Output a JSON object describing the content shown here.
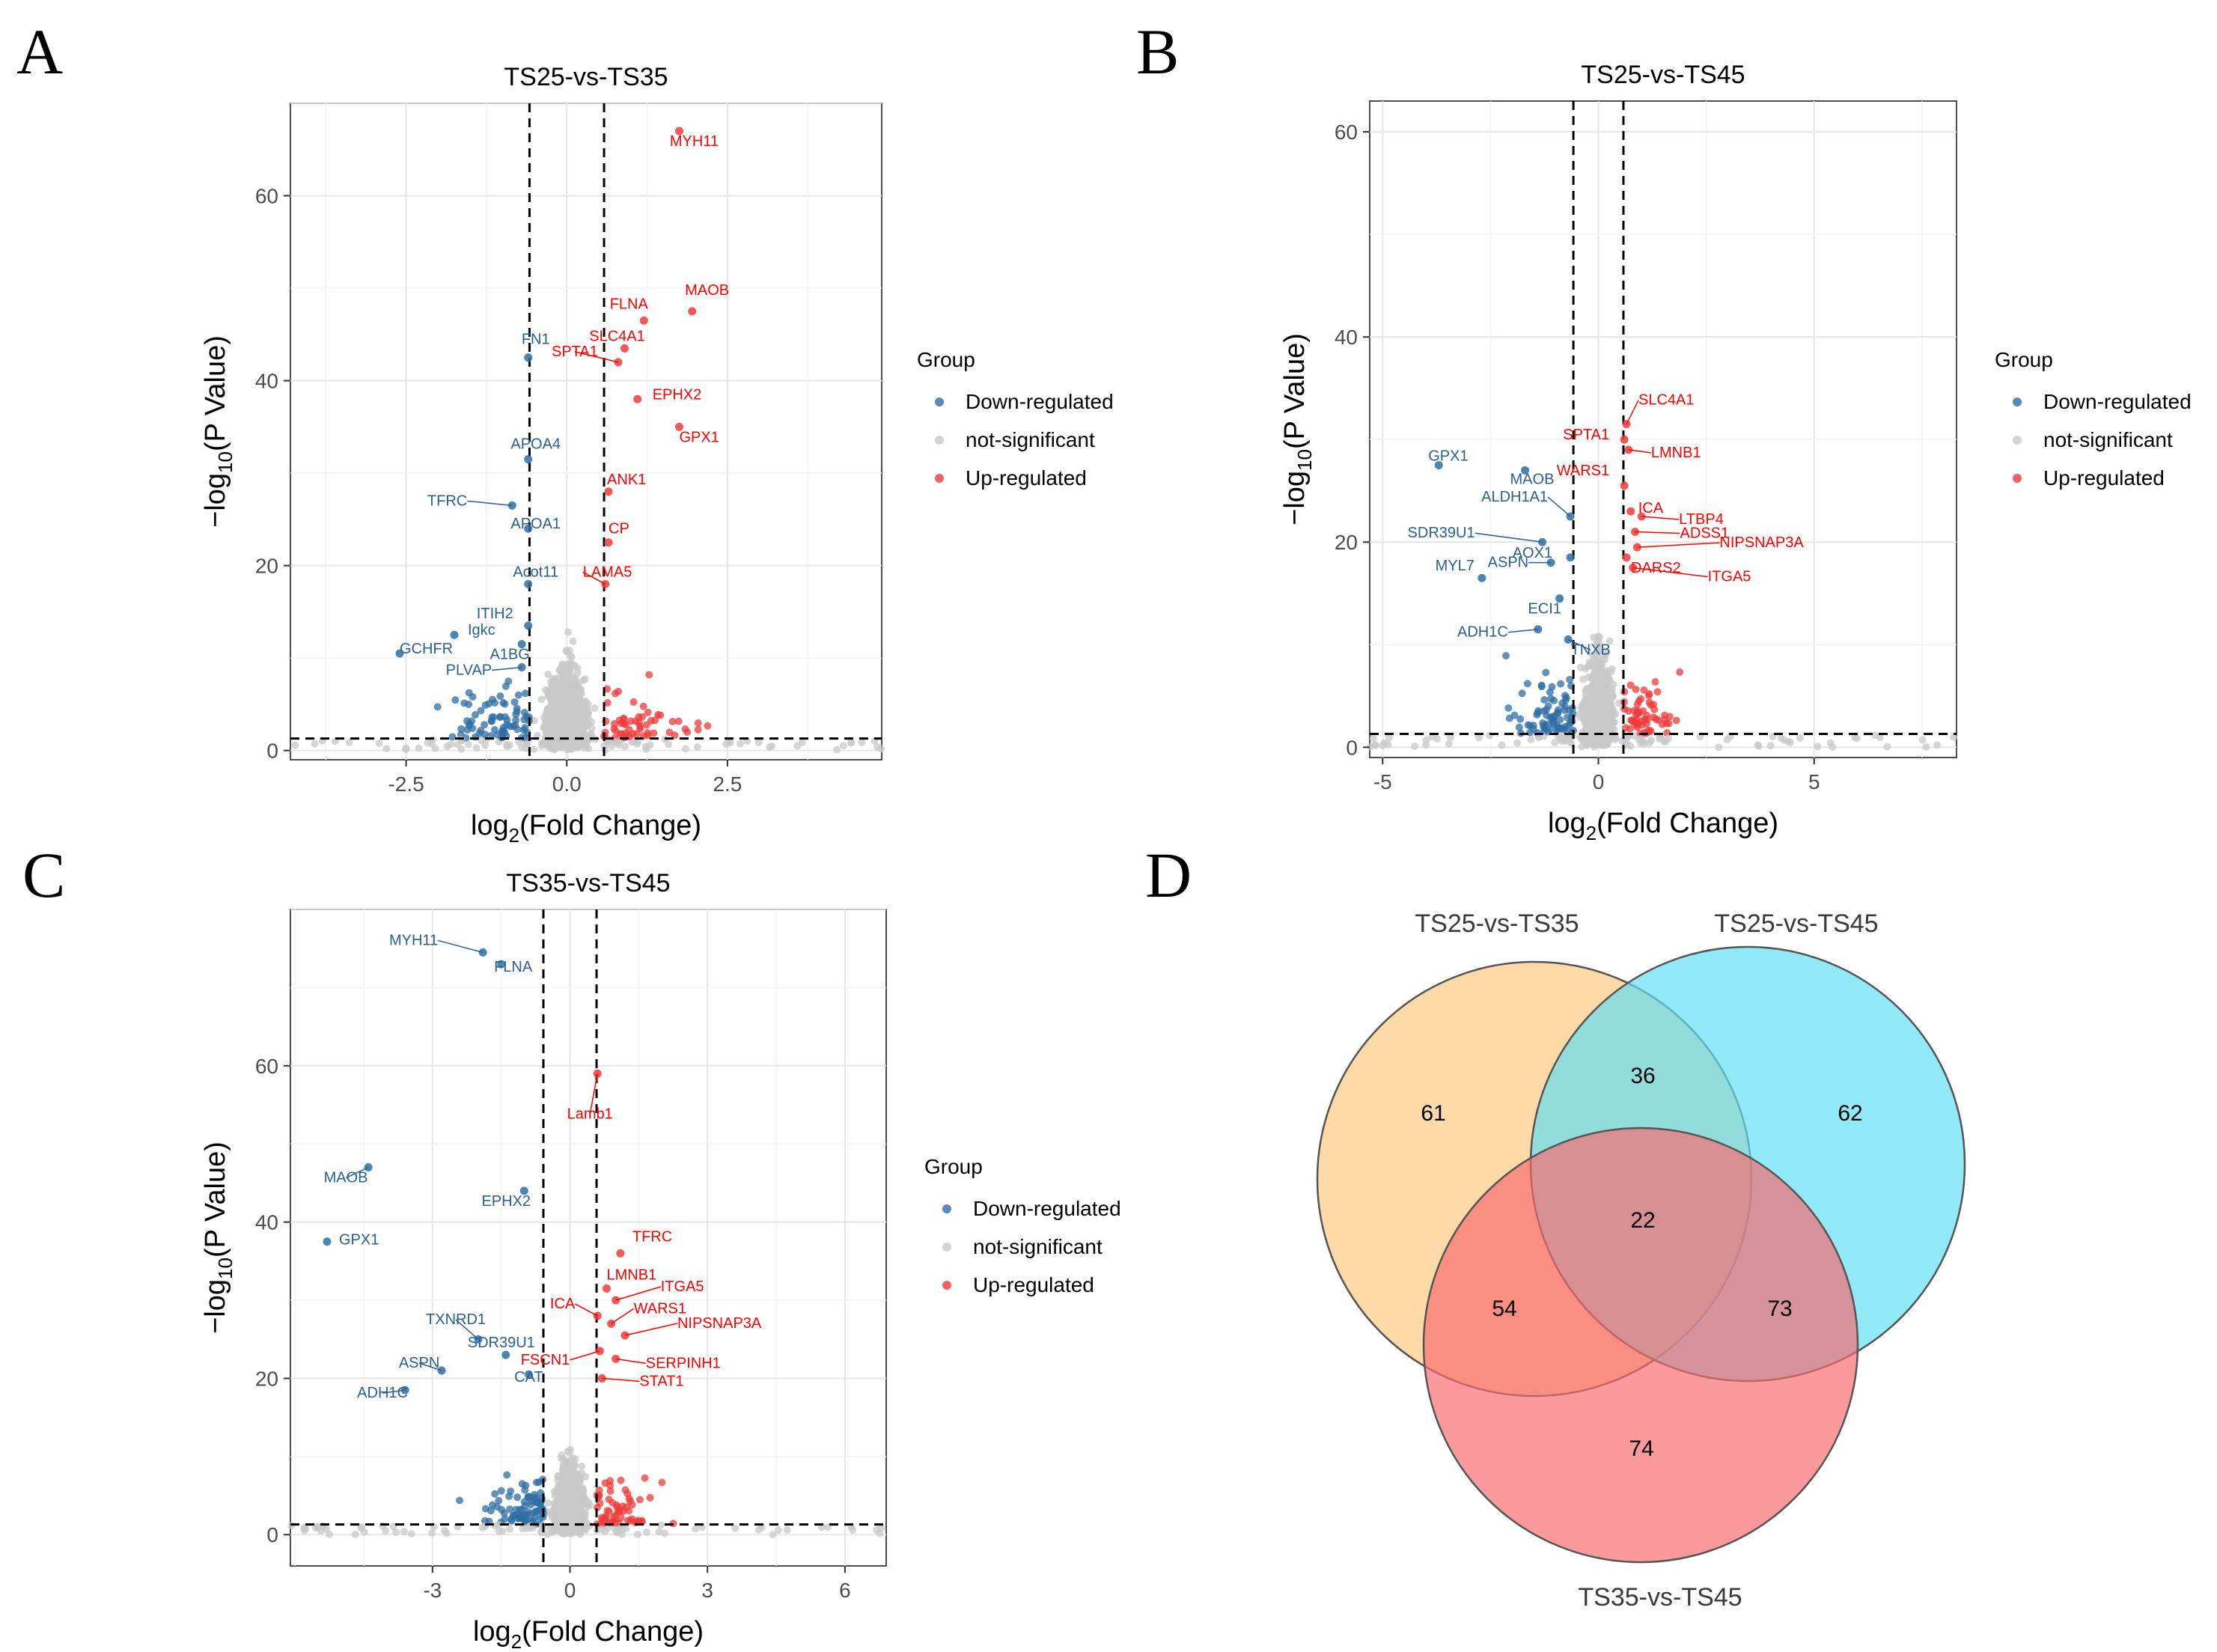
{
  "panels": {
    "A": "A",
    "B": "B",
    "C": "C",
    "D": "D"
  },
  "legend": {
    "title": "Group",
    "items": [
      {
        "label": "Down-regulated",
        "color": "#2f6ea4"
      },
      {
        "label": "not-significant",
        "color": "#c8c8c8"
      },
      {
        "label": "Up-regulated",
        "color": "#ee3b3b"
      }
    ]
  },
  "chart_data": [
    {
      "type": "scatter",
      "title": "TS25-vs-TS35",
      "xlabel": "log2(Fold Change)",
      "ylabel": "−log10(P Value)",
      "xlim": [
        -4.3,
        4.9
      ],
      "ylim": [
        -1,
        70
      ],
      "xticks": [
        -2.5,
        0,
        2.5
      ],
      "yticks": [
        0,
        20,
        40,
        60
      ],
      "fc_threshold": [
        -0.58,
        0.58
      ],
      "p_threshold": 1.3,
      "labeled": [
        {
          "gene": "MYH11",
          "x": 1.75,
          "y": 67,
          "group": "up"
        },
        {
          "gene": "MAOB",
          "x": 1.95,
          "y": 47.5,
          "group": "up"
        },
        {
          "gene": "FLNA",
          "x": 1.2,
          "y": 46.5,
          "group": "up"
        },
        {
          "gene": "SLC4A1",
          "x": 0.9,
          "y": 43.5,
          "group": "up"
        },
        {
          "gene": "SPTA1",
          "x": 0.8,
          "y": 42,
          "group": "up"
        },
        {
          "gene": "EPHX2",
          "x": 1.1,
          "y": 38,
          "group": "up"
        },
        {
          "gene": "GPX1",
          "x": 1.75,
          "y": 35,
          "group": "up"
        },
        {
          "gene": "ANK1",
          "x": 0.65,
          "y": 28,
          "group": "up"
        },
        {
          "gene": "CP",
          "x": 0.65,
          "y": 22.5,
          "group": "up"
        },
        {
          "gene": "LAMA5",
          "x": 0.6,
          "y": 18,
          "group": "up"
        },
        {
          "gene": "FN1",
          "x": -0.6,
          "y": 42.5,
          "group": "down"
        },
        {
          "gene": "APOA4",
          "x": -0.6,
          "y": 31.5,
          "group": "down"
        },
        {
          "gene": "TFRC",
          "x": -0.85,
          "y": 26.5,
          "group": "down"
        },
        {
          "gene": "APOA1",
          "x": -0.6,
          "y": 24,
          "group": "down"
        },
        {
          "gene": "Acot11",
          "x": -0.6,
          "y": 18,
          "group": "down"
        },
        {
          "gene": "ITIH2",
          "x": -0.6,
          "y": 13.5,
          "group": "down"
        },
        {
          "gene": "A1BG",
          "x": -0.7,
          "y": 11.5,
          "group": "down"
        },
        {
          "gene": "Igkc",
          "x": -1.75,
          "y": 12.5,
          "group": "down"
        },
        {
          "gene": "GCHFR",
          "x": -2.6,
          "y": 10.5,
          "group": "down"
        },
        {
          "gene": "PLVAP",
          "x": -0.7,
          "y": 9,
          "group": "down"
        }
      ]
    },
    {
      "type": "scatter",
      "title": "TS25-vs-TS45",
      "xlabel": "log2(Fold Change)",
      "ylabel": "−log10(P Value)",
      "xlim": [
        -5.3,
        8.3
      ],
      "ylim": [
        -1,
        63
      ],
      "xticks": [
        -5,
        0,
        5
      ],
      "yticks": [
        0,
        20,
        40,
        60
      ],
      "fc_threshold": [
        -0.58,
        0.58
      ],
      "p_threshold": 1.3,
      "labeled": [
        {
          "gene": "SLC4A1",
          "x": 0.65,
          "y": 31.5,
          "group": "up"
        },
        {
          "gene": "SPTA1",
          "x": 0.6,
          "y": 30,
          "group": "up"
        },
        {
          "gene": "LMNB1",
          "x": 0.7,
          "y": 29,
          "group": "up"
        },
        {
          "gene": "WARS1",
          "x": 0.6,
          "y": 25.5,
          "group": "up"
        },
        {
          "gene": "ICA",
          "x": 0.75,
          "y": 23,
          "group": "up"
        },
        {
          "gene": "LTBP4",
          "x": 1.0,
          "y": 22.5,
          "group": "up"
        },
        {
          "gene": "ADSS1",
          "x": 0.85,
          "y": 21,
          "group": "up"
        },
        {
          "gene": "NIPSNAP3A",
          "x": 0.9,
          "y": 19.5,
          "group": "up"
        },
        {
          "gene": "DARS2",
          "x": 0.65,
          "y": 18.5,
          "group": "up"
        },
        {
          "gene": "ITGA5",
          "x": 0.8,
          "y": 17.5,
          "group": "up"
        },
        {
          "gene": "GPX1",
          "x": -3.7,
          "y": 27.5,
          "group": "down"
        },
        {
          "gene": "MAOB",
          "x": -1.7,
          "y": 27,
          "group": "down"
        },
        {
          "gene": "ALDH1A1",
          "x": -0.65,
          "y": 22.5,
          "group": "down"
        },
        {
          "gene": "SDR39U1",
          "x": -1.3,
          "y": 20,
          "group": "down"
        },
        {
          "gene": "AOX1",
          "x": -0.65,
          "y": 18.5,
          "group": "down"
        },
        {
          "gene": "ASPN",
          "x": -1.1,
          "y": 18,
          "group": "down"
        },
        {
          "gene": "MYL7",
          "x": -2.7,
          "y": 16.5,
          "group": "down"
        },
        {
          "gene": "ECI1",
          "x": -0.9,
          "y": 14.5,
          "group": "down"
        },
        {
          "gene": "ADH1C",
          "x": -1.4,
          "y": 11.5,
          "group": "down"
        },
        {
          "gene": "TNXB",
          "x": -0.7,
          "y": 10.5,
          "group": "down"
        }
      ]
    },
    {
      "type": "scatter",
      "title": "TS35-vs-TS45",
      "xlabel": "log2(Fold Change)",
      "ylabel": "−log10(P Value)",
      "xlim": [
        -6.1,
        6.9
      ],
      "ylim": [
        -4,
        80
      ],
      "xticks": [
        -3,
        0,
        3,
        6
      ],
      "yticks": [
        0,
        20,
        40,
        60
      ],
      "fc_threshold": [
        -0.58,
        0.58
      ],
      "p_threshold": 1.3,
      "labeled": [
        {
          "gene": "MYH11",
          "x": -1.9,
          "y": 74.5,
          "group": "down"
        },
        {
          "gene": "FLNA",
          "x": -1.5,
          "y": 73,
          "group": "down"
        },
        {
          "gene": "MAOB",
          "x": -4.4,
          "y": 47,
          "group": "down"
        },
        {
          "gene": "EPHX2",
          "x": -1.0,
          "y": 44,
          "group": "down"
        },
        {
          "gene": "GPX1",
          "x": -5.3,
          "y": 37.5,
          "group": "down"
        },
        {
          "gene": "TXNRD1",
          "x": -2.0,
          "y": 25,
          "group": "down"
        },
        {
          "gene": "SDR39U1",
          "x": -1.4,
          "y": 23,
          "group": "down"
        },
        {
          "gene": "ASPN",
          "x": -2.8,
          "y": 21,
          "group": "down"
        },
        {
          "gene": "CAT",
          "x": -0.9,
          "y": 20.5,
          "group": "down"
        },
        {
          "gene": "ADH1C",
          "x": -3.6,
          "y": 18.5,
          "group": "down"
        },
        {
          "gene": "Lamb1",
          "x": 0.6,
          "y": 59,
          "group": "up"
        },
        {
          "gene": "TFRC",
          "x": 1.1,
          "y": 36,
          "group": "up"
        },
        {
          "gene": "LMNB1",
          "x": 0.8,
          "y": 31.5,
          "group": "up"
        },
        {
          "gene": "ITGA5",
          "x": 1.0,
          "y": 30,
          "group": "up"
        },
        {
          "gene": "ICA",
          "x": 0.6,
          "y": 28,
          "group": "up"
        },
        {
          "gene": "WARS1",
          "x": 0.9,
          "y": 27,
          "group": "up"
        },
        {
          "gene": "NIPSNAP3A",
          "x": 1.2,
          "y": 25.5,
          "group": "up"
        },
        {
          "gene": "FSCN1",
          "x": 0.65,
          "y": 23.5,
          "group": "up"
        },
        {
          "gene": "SERPINH1",
          "x": 1.0,
          "y": 22.5,
          "group": "up"
        },
        {
          "gene": "STAT1",
          "x": 0.7,
          "y": 20,
          "group": "up"
        }
      ]
    },
    {
      "type": "venn",
      "sets": [
        "TS25-vs-TS35",
        "TS25-vs-TS45",
        "TS35-vs-TS45"
      ],
      "regions": {
        "TS25-vs-TS35 only": "61",
        "TS25-vs-TS45 only": "62",
        "TS35-vs-TS45 only": "74",
        "TS25-vs-TS35 & TS25-vs-TS45": "36",
        "TS25-vs-TS35 & TS35-vs-TS45": "54",
        "TS25-vs-TS45 & TS35-vs-TS45": "73",
        "all three": "22"
      },
      "colors": [
        "#fcc97d",
        "#5fdff5",
        "#f86a6e"
      ]
    }
  ]
}
